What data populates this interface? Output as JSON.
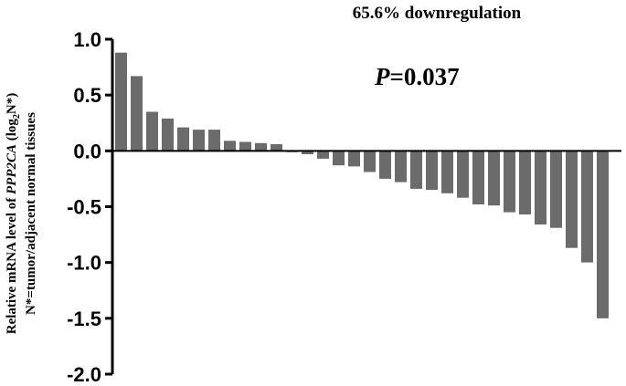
{
  "chart_data": {
    "type": "bar",
    "ylim": [
      -2.0,
      1.0
    ],
    "yticks": [
      1.0,
      0.5,
      0.0,
      -0.5,
      -1.0,
      -1.5,
      -2.0
    ],
    "ytick_labels": [
      "1.0",
      "0.5",
      "0.0",
      "-0.5",
      "-1.0",
      "-1.5",
      "-2.0"
    ],
    "ylabel_line1_prefix": "Relative mRNA level of ",
    "ylabel_line1_gene": "PPP2CA",
    "ylabel_line1_log": " (log",
    "ylabel_line1_sub": "2",
    "ylabel_line1_suffix": "N*)",
    "ylabel_line2": "N*=tumor/adjacent normal tissues",
    "annotation_title": "65.6% downregulation",
    "annotation_p_italic": "P",
    "annotation_p_value": "=0.037",
    "bar_color": "#6b6b6b",
    "values": [
      0.88,
      0.67,
      0.35,
      0.29,
      0.21,
      0.19,
      0.19,
      0.09,
      0.08,
      0.07,
      0.06,
      -0.01,
      -0.03,
      -0.07,
      -0.13,
      -0.14,
      -0.19,
      -0.25,
      -0.28,
      -0.34,
      -0.35,
      -0.38,
      -0.42,
      -0.48,
      -0.49,
      -0.55,
      -0.57,
      -0.66,
      -0.69,
      -0.87,
      -1.0,
      -1.5
    ]
  }
}
